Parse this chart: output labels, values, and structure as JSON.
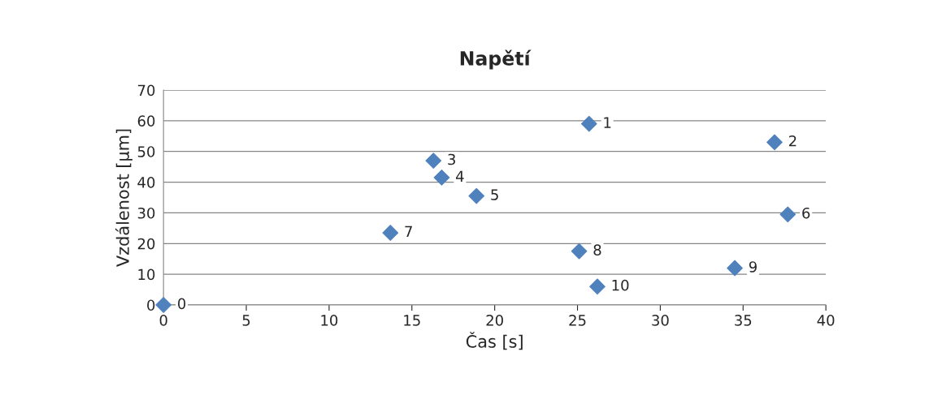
{
  "chart_data": {
    "type": "scatter",
    "title": "Napětí",
    "xlabel": "Čas [s]",
    "ylabel": "Vzdálenost [µm]",
    "x": [
      0,
      25.7,
      36.9,
      16.3,
      16.8,
      18.9,
      37.7,
      13.7,
      25.1,
      34.5,
      26.2
    ],
    "series": [
      {
        "color": "#4f81bd",
        "values": [
          0,
          59,
          53,
          47,
          41.5,
          35.5,
          29.5,
          23.5,
          17.5,
          12,
          6
        ]
      }
    ],
    "annotations": [
      {
        "text": "0",
        "x": 0,
        "y": 0
      },
      {
        "text": "1",
        "x": 25.7,
        "y": 59
      },
      {
        "text": "2",
        "x": 36.9,
        "y": 53
      },
      {
        "text": "3",
        "x": 16.3,
        "y": 47
      },
      {
        "text": "4",
        "x": 16.8,
        "y": 41.5
      },
      {
        "text": "5",
        "x": 18.9,
        "y": 35.5
      },
      {
        "text": "6",
        "x": 37.7,
        "y": 29.5
      },
      {
        "text": "7",
        "x": 13.7,
        "y": 23.5
      },
      {
        "text": "8",
        "x": 25.1,
        "y": 17.5
      },
      {
        "text": "9",
        "x": 34.5,
        "y": 12
      },
      {
        "text": "10",
        "x": 26.2,
        "y": 6
      }
    ],
    "xlim": [
      0,
      40
    ],
    "xticks": [
      0,
      5,
      10,
      15,
      20,
      25,
      30,
      35,
      40
    ],
    "ylim": [
      0,
      70
    ],
    "yticks": [
      0,
      10,
      20,
      30,
      40,
      50,
      60,
      70
    ],
    "grid": "y",
    "marker": "diamond",
    "legend": false
  }
}
